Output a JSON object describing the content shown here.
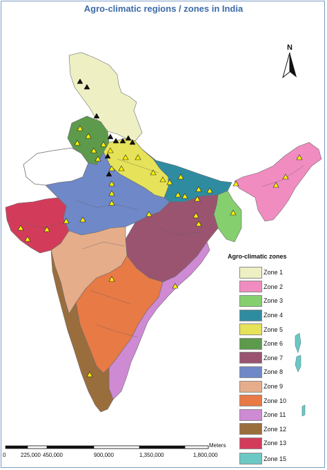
{
  "map": {
    "title": "Agro-climatic regions / zones in India",
    "north_label": "N",
    "scale": {
      "unit": "Meters",
      "ticks": [
        "0",
        "225,000",
        "450,000",
        "900,000",
        "1,350,000",
        "1,800,000"
      ]
    },
    "legend": {
      "title": "Agro-climatic zones",
      "items": [
        {
          "label": "Zone 1",
          "color": "#eef0c4"
        },
        {
          "label": "Zone 2",
          "color": "#f08cc0"
        },
        {
          "label": "Zone 3",
          "color": "#86cf6e"
        },
        {
          "label": "Zone 4",
          "color": "#2f8ca0"
        },
        {
          "label": "Zone 5",
          "color": "#e6e25a"
        },
        {
          "label": "Zone 6",
          "color": "#5d9a4c"
        },
        {
          "label": "Zone 7",
          "color": "#9a5470"
        },
        {
          "label": "Zone 8",
          "color": "#6f88c8"
        },
        {
          "label": "Zone 9",
          "color": "#e5ad8a"
        },
        {
          "label": "Zone 10",
          "color": "#e87a46"
        },
        {
          "label": "Zone 11",
          "color": "#cf8ad4"
        },
        {
          "label": "Zone 12",
          "color": "#9a6e3c"
        },
        {
          "label": "Zone 13",
          "color": "#d23c5a"
        }
      ],
      "extra_item": {
        "label": "Zone 15",
        "color": "#6cc8c4"
      }
    }
  }
}
